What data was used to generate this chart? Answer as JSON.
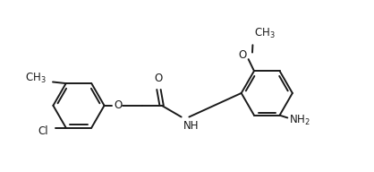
{
  "bg_color": "#ffffff",
  "line_color": "#1a1a1a",
  "line_width": 1.4,
  "font_size": 8.5,
  "figsize": [
    4.18,
    1.92
  ],
  "dpi": 100,
  "xlim": [
    0,
    10.5
  ],
  "ylim": [
    0,
    4.8
  ]
}
